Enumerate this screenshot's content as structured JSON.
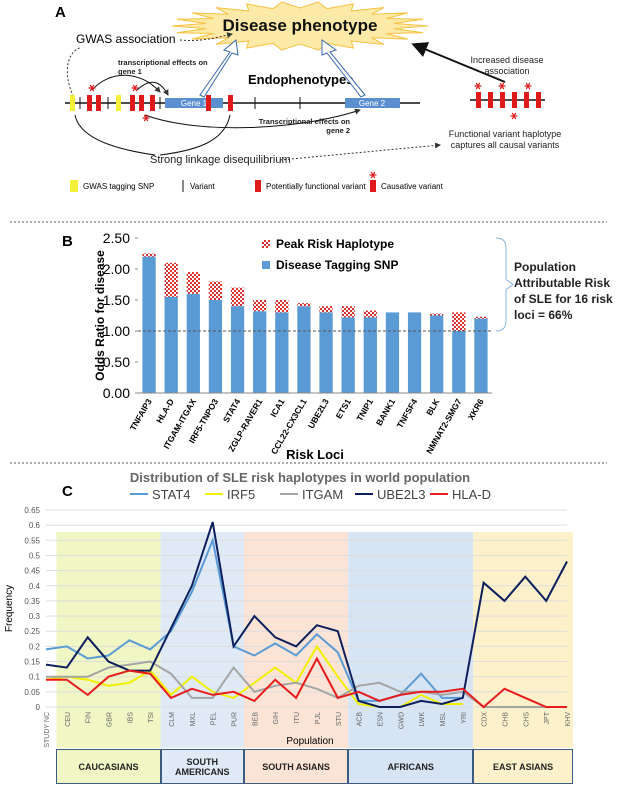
{
  "diagram": {
    "panel": "A",
    "phenotype": "Disease phenotype",
    "gwas": "GWAS association",
    "effects_gene1": "transcriptional effects on gene 1",
    "endophenotypes": "Endophenotypes",
    "gene1": "Gene 1",
    "gene2": "Gene 2",
    "effects_gene2": "Transcriptional effects on gene 2",
    "increased": "Increased disease association",
    "haplotype": "Functional variant haplotype captures all causal variants",
    "ld": "Strong linkage disequilibrium",
    "legend": [
      "GWAS tagging SNP",
      "Variant",
      "Potentially functional variant",
      "Causative variant"
    ]
  },
  "chart_data": [
    {
      "panel": "B",
      "type": "bar",
      "stacked": true,
      "xlabel": "Risk Loci",
      "ylabel": "Odds Ratio for disease",
      "annotation": "Population Attributable Risk of SLE for 16 risk loci = 66%",
      "categories": [
        "TNFAIP3",
        "HLA-D",
        "ITGAM-ITGAX",
        "IRF5-TNPO3",
        "STAT4",
        "ZGLP-RAVER1",
        "ICA1",
        "CCL22-CX3CL1",
        "UBE2L3",
        "ETS1",
        "TNIP1",
        "BANK1",
        "TNFSF4",
        "BLK",
        "NMNAT2-SMG7",
        "XKR6"
      ],
      "series": [
        {
          "name": "Disease Tagging SNP",
          "color": "#5b9bd5",
          "values": [
            2.2,
            1.55,
            1.6,
            1.5,
            1.4,
            1.32,
            1.3,
            1.4,
            1.3,
            1.22,
            1.22,
            1.3,
            1.3,
            1.25,
            1.0,
            1.2
          ]
        },
        {
          "name": "Peak Risk Haplotype",
          "color": "#d93030",
          "values": [
            0.05,
            0.55,
            0.35,
            0.3,
            0.3,
            0.18,
            0.2,
            0.05,
            0.1,
            0.18,
            0.11,
            0,
            0,
            0.03,
            0.3,
            0.03
          ]
        }
      ],
      "ylim": [
        0,
        2.5
      ],
      "yticks": [
        {
          "value": 0,
          "label": "0.00"
        },
        {
          "value": 0.5,
          "label": "0.50"
        },
        {
          "value": 1,
          "label": "1.00"
        },
        {
          "value": 1.5,
          "label": "1.50"
        },
        {
          "value": 2,
          "label": "2.00"
        },
        {
          "value": 2.5,
          "label": "2.50"
        }
      ],
      "reference_line": 1
    },
    {
      "panel": "C",
      "type": "line",
      "title": "Distribution of SLE risk haplotypes in world population",
      "xlabel": "Population",
      "ylabel": "Frequency",
      "grid": true,
      "categories": [
        "STUDY NC",
        "CEU",
        "FIN",
        "GBR",
        "IBS",
        "TSI",
        "CLM",
        "MXL",
        "PEL",
        "PUR",
        "BEB",
        "GIH",
        "ITU",
        "PJL",
        "STU",
        "ACB",
        "ESN",
        "GWD",
        "LWK",
        "MSL",
        "YRI",
        "CDX",
        "CHB",
        "CHS",
        "JPT",
        "KHV"
      ],
      "series": [
        {
          "name": "STAT4",
          "color": "#5b9bd5",
          "values": [
            0.19,
            0.2,
            0.16,
            0.17,
            0.22,
            0.19,
            0.25,
            0.38,
            0.55,
            0.2,
            0.17,
            0.21,
            0.17,
            0.24,
            0.18,
            0.02,
            0.02,
            0.04,
            0.11,
            0.03,
            0.03,
            null,
            null,
            null,
            null,
            null
          ]
        },
        {
          "name": "IRF5",
          "color": "#f2f000",
          "values": [
            0.09,
            0.1,
            0.09,
            0.07,
            0.08,
            0.12,
            0.04,
            0.1,
            0.05,
            0.03,
            0.08,
            0.13,
            0.08,
            0.2,
            0.1,
            0.01,
            0,
            0,
            0.04,
            0.01,
            0.01,
            null,
            null,
            null,
            null,
            null
          ]
        },
        {
          "name": "ITGAM",
          "color": "#a5a5a5",
          "values": [
            0.1,
            0.1,
            0.1,
            0.13,
            0.14,
            0.15,
            0.11,
            0.03,
            0.03,
            0.13,
            0.05,
            0.07,
            0.08,
            0.06,
            0.03,
            0.07,
            0.08,
            0.05,
            0.05,
            0.04,
            0.05,
            0,
            0,
            0,
            0,
            0
          ]
        },
        {
          "name": "UBE2L3",
          "color": "#0d1f5c",
          "values": [
            0.14,
            0.13,
            0.23,
            0.15,
            0.12,
            0.12,
            0.26,
            0.4,
            0.61,
            0.2,
            0.3,
            0.23,
            0.2,
            0.27,
            0.25,
            0.02,
            0,
            0,
            0.02,
            0.01,
            0.03,
            0.41,
            0.35,
            0.43,
            0.35,
            0.48
          ]
        },
        {
          "name": "HLA-D",
          "color": "#e81c1c",
          "values": [
            0.09,
            0.09,
            0.04,
            0.1,
            0.12,
            0.11,
            0.03,
            0.06,
            0.04,
            0.05,
            0.02,
            0.09,
            0.03,
            0.16,
            0.03,
            0.05,
            0.02,
            0.04,
            0.05,
            0.05,
            0.06,
            0,
            0.06,
            0.03,
            0,
            0
          ]
        }
      ],
      "groups": [
        {
          "label": "CAUCASIANS",
          "from": "CEU",
          "to": "TSI",
          "color": "#f0f6c4"
        },
        {
          "label": "SOUTH AMERICANS",
          "from": "CLM",
          "to": "PUR",
          "color": "#dfeaf6"
        },
        {
          "label": "SOUTH ASIANS",
          "from": "BEB",
          "to": "STU",
          "color": "#fbe4d5"
        },
        {
          "label": "AFRICANS",
          "from": "ACB",
          "to": "YRI",
          "color": "#d7e4f4"
        },
        {
          "label": "EAST ASIANS",
          "from": "CDX",
          "to": "KHV",
          "color": "#fdf1cc"
        }
      ],
      "ylim": [
        0,
        0.65
      ],
      "yticks": [
        0,
        0.05,
        0.1,
        0.15,
        0.2,
        0.25,
        0.3,
        0.35,
        0.4,
        0.45,
        0.5,
        0.55,
        0.6,
        0.65
      ]
    }
  ]
}
